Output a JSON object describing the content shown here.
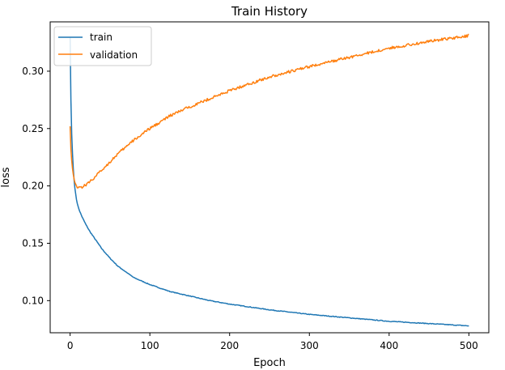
{
  "chart_data": {
    "type": "line",
    "title": "Train History",
    "xlabel": "Epoch",
    "ylabel": "loss",
    "xlim": [
      -25,
      525
    ],
    "ylim": [
      0.072,
      0.343
    ],
    "xticks": [
      0,
      100,
      200,
      300,
      400,
      500
    ],
    "xtick_labels": [
      "0",
      "100",
      "200",
      "300",
      "400",
      "500"
    ],
    "yticks": [
      0.1,
      0.15,
      0.2,
      0.25,
      0.3
    ],
    "ytick_labels": [
      "0.10",
      "0.15",
      "0.20",
      "0.25",
      "0.30"
    ],
    "grid": false,
    "legend_position": "top-left",
    "series": [
      {
        "name": "train",
        "color": "#1f77b4",
        "noise": 0.0003,
        "x": [
          0,
          1,
          2,
          3,
          4,
          5,
          6,
          8,
          10,
          12,
          15,
          20,
          25,
          30,
          40,
          50,
          60,
          70,
          80,
          90,
          100,
          125,
          150,
          175,
          200,
          250,
          300,
          350,
          400,
          450,
          500
        ],
        "values": [
          0.33,
          0.275,
          0.245,
          0.228,
          0.215,
          0.205,
          0.198,
          0.188,
          0.182,
          0.178,
          0.173,
          0.166,
          0.16,
          0.155,
          0.145,
          0.137,
          0.13,
          0.125,
          0.12,
          0.117,
          0.114,
          0.108,
          0.104,
          0.1,
          0.097,
          0.092,
          0.088,
          0.085,
          0.082,
          0.08,
          0.078
        ]
      },
      {
        "name": "validation",
        "color": "#ff7f0e",
        "noise": 0.0012,
        "x": [
          0,
          1,
          2,
          3,
          4,
          5,
          6,
          8,
          10,
          12,
          15,
          20,
          25,
          30,
          40,
          50,
          60,
          70,
          80,
          90,
          100,
          125,
          150,
          175,
          200,
          250,
          300,
          350,
          400,
          450,
          500
        ],
        "values": [
          0.252,
          0.232,
          0.222,
          0.215,
          0.21,
          0.206,
          0.203,
          0.2,
          0.199,
          0.199,
          0.199,
          0.201,
          0.204,
          0.207,
          0.214,
          0.221,
          0.228,
          0.234,
          0.24,
          0.245,
          0.25,
          0.261,
          0.269,
          0.276,
          0.283,
          0.295,
          0.304,
          0.312,
          0.32,
          0.326,
          0.331
        ]
      }
    ]
  }
}
